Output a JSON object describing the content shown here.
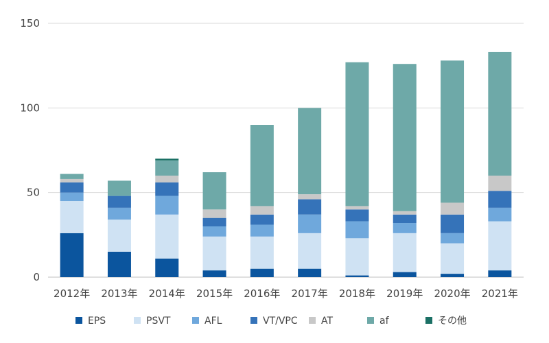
{
  "chart_data": {
    "type": "bar",
    "stacked": true,
    "categories": [
      "2012年",
      "2013年",
      "2014年",
      "2015年",
      "2016年",
      "2017年",
      "2018年",
      "2019年",
      "2020年",
      "2021年"
    ],
    "ylim": [
      0,
      150
    ],
    "yticks": [
      0,
      50,
      100,
      150
    ],
    "grid": true,
    "legend_position": "bottom",
    "series": [
      {
        "name": "EPS",
        "color": "#0b559e",
        "values": [
          26,
          15,
          11,
          4,
          5,
          5,
          1,
          3,
          2,
          4
        ]
      },
      {
        "name": "PSVT",
        "color": "#cfe2f3",
        "values": [
          19,
          19,
          26,
          20,
          19,
          21,
          22,
          23,
          18,
          29
        ]
      },
      {
        "name": "AFL",
        "color": "#6fa8dc",
        "values": [
          5,
          7,
          11,
          6,
          7,
          11,
          10,
          6,
          6,
          8
        ]
      },
      {
        "name": "VT/VPC",
        "color": "#3573b9",
        "values": [
          6,
          7,
          8,
          5,
          6,
          9,
          7,
          5,
          11,
          10
        ]
      },
      {
        "name": "AT",
        "color": "#c8c8c8",
        "values": [
          2,
          0,
          4,
          5,
          5,
          3,
          2,
          2,
          7,
          9
        ]
      },
      {
        "name": "af",
        "color": "#6ea9a8",
        "values": [
          3,
          9,
          9,
          22,
          48,
          51,
          85,
          87,
          84,
          73
        ]
      },
      {
        "name": "その他",
        "color": "#1b7065",
        "values": [
          0,
          0,
          1,
          0,
          0,
          0,
          0,
          0,
          0,
          0
        ]
      }
    ]
  }
}
